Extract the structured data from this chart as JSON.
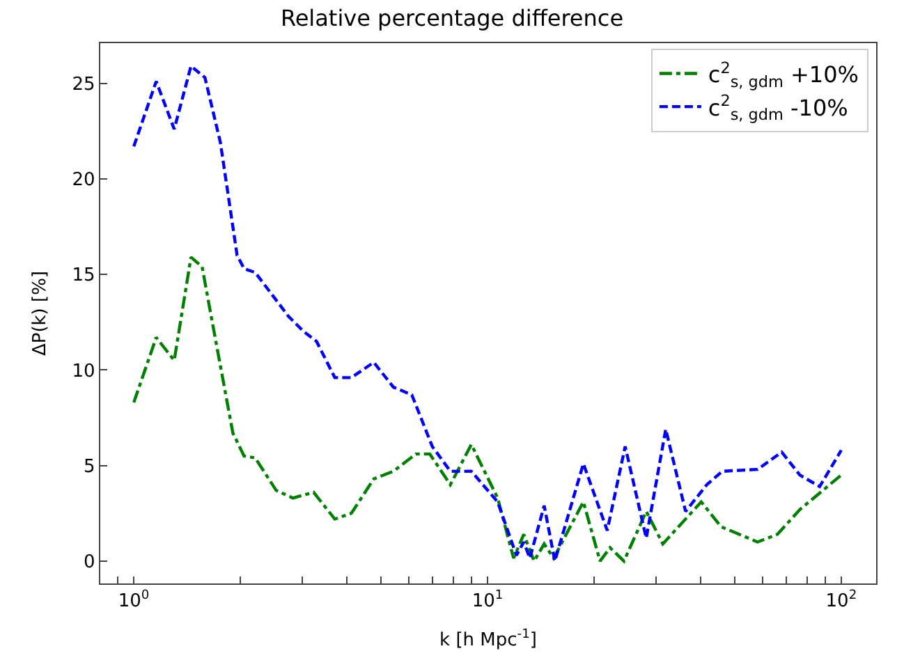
{
  "chart_data": {
    "type": "line",
    "title": "Relative percentage difference",
    "xlabel": "k [h Mpc$^{-1}$]",
    "ylabel": "ΔP(k) [%]",
    "log": "x",
    "legend": "top right",
    "marker": "none",
    "xlim": [
      0.804,
      125.5
    ],
    "ylim": [
      -1.17,
      27.1
    ],
    "xticks": [
      {
        "value": 1,
        "label": "10$^{0}$"
      },
      {
        "value": 10,
        "label": "10$^{1}$"
      },
      {
        "value": 100,
        "label": "10$^{2}$"
      },
      {
        "value": 0.9,
        "label": null
      },
      {
        "value": 2,
        "label": null
      },
      {
        "value": 3,
        "label": null
      },
      {
        "value": 4,
        "label": null
      },
      {
        "value": 5,
        "label": null
      },
      {
        "value": 6,
        "label": null
      },
      {
        "value": 7,
        "label": null
      },
      {
        "value": 8,
        "label": null
      },
      {
        "value": 9,
        "label": null
      },
      {
        "value": 20,
        "label": null
      },
      {
        "value": 30,
        "label": null
      },
      {
        "value": 40,
        "label": null
      },
      {
        "value": 50,
        "label": null
      },
      {
        "value": 60,
        "label": null
      },
      {
        "value": 70,
        "label": null
      },
      {
        "value": 80,
        "label": null
      },
      {
        "value": 90,
        "label": null
      }
    ],
    "yticks": [
      0,
      5,
      10,
      15,
      20,
      25
    ],
    "series": [
      {
        "name": "c$^{2}$$_{s, gdm}$ +10%",
        "color": "#008000",
        "line_style": "dashdot",
        "x": [
          1,
          1.157,
          1.301,
          1.451,
          1.56,
          1.663,
          1.906,
          2.05,
          2.204,
          2.526,
          2.816,
          3.224,
          3.7,
          4.121,
          4.769,
          5.42,
          6.27,
          6.869,
          7.85,
          9.0,
          10.68,
          11.85,
          12.66,
          13.54,
          14.46,
          15.38,
          18.66,
          20.8,
          22.2,
          24.3,
          28.1,
          31.3,
          40.2,
          45.7,
          58.0,
          66.0,
          76.4,
          100
        ],
        "values": [
          8.3,
          11.7,
          10.5,
          15.9,
          15.4,
          12.6,
          6.7,
          5.5,
          5.4,
          3.7,
          3.3,
          3.6,
          2.2,
          2.5,
          4.3,
          4.7,
          5.6,
          5.6,
          4.0,
          6.1,
          3.3,
          0.15,
          1.4,
          0,
          0.9,
          0.15,
          3.1,
          0,
          0.7,
          0,
          2.6,
          0.9,
          3.1,
          1.8,
          1.0,
          1.4,
          2.7,
          4.5
        ]
      },
      {
        "name": "c$^{2}$$_{s, gdm}$ -10%",
        "color": "#0000ff",
        "line_style": "dashed",
        "x": [
          1,
          1.157,
          1.301,
          1.451,
          1.589,
          1.757,
          1.959,
          2.05,
          2.204,
          2.739,
          3.027,
          3.285,
          3.7,
          4.121,
          4.769,
          5.42,
          6.109,
          6.978,
          7.85,
          9.0,
          10.68,
          12.07,
          12.66,
          13.17,
          14.46,
          15.5,
          18.66,
          21.8,
          24.5,
          28.1,
          31.9,
          36.3,
          41.7,
          46.1,
          58.0,
          67.9,
          76.4,
          86.9,
          100
        ],
        "values": [
          21.7,
          25.1,
          22.6,
          25.9,
          25.3,
          21.9,
          16.0,
          15.3,
          15.1,
          12.8,
          12.0,
          11.5,
          9.6,
          9.6,
          10.4,
          9.1,
          8.7,
          6.0,
          4.7,
          4.7,
          3.1,
          0.3,
          1.0,
          0.15,
          2.9,
          0,
          5.1,
          1.6,
          6.0,
          1.2,
          6.9,
          2.6,
          4.0,
          4.7,
          4.8,
          5.7,
          4.5,
          3.9,
          5.8
        ]
      }
    ]
  }
}
